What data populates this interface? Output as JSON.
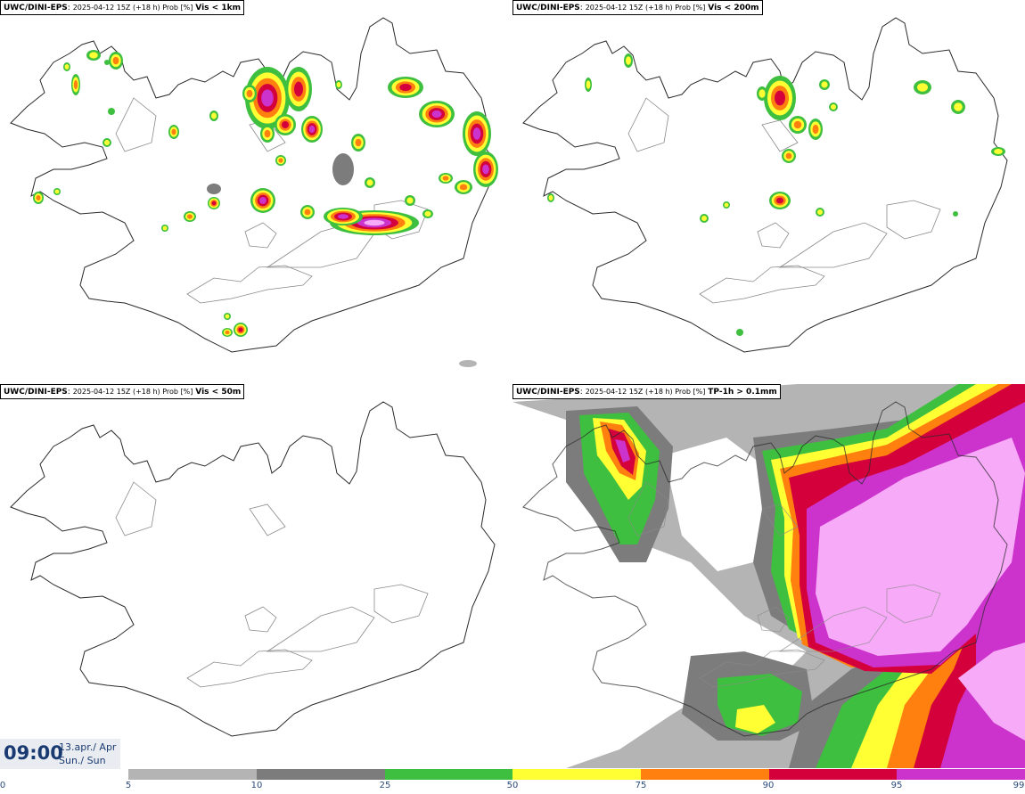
{
  "panels": [
    {
      "model": "UWC/DINI-EPS",
      "run": "2025-04-12 15Z (+18 h) Prob [%]",
      "variable": "Vis < 1km"
    },
    {
      "model": "UWC/DINI-EPS",
      "run": "2025-04-12 15Z (+18 h) Prob [%]",
      "variable": "Vis < 200m"
    },
    {
      "model": "UWC/DINI-EPS",
      "run": "2025-04-12 15Z (+18 h) Prob [%]",
      "variable": "Vis < 50m"
    },
    {
      "model": "UWC/DINI-EPS",
      "run": "2025-04-12 15Z (+18 h) Prob [%]",
      "variable": "TP-1h > 0.1mm"
    }
  ],
  "valid_time": {
    "time": "09:00",
    "date_line1": "13.apr./ Apr",
    "date_line2": "Sun./ Sun"
  },
  "legend": {
    "ticks": [
      "0",
      "5",
      "10",
      "25",
      "50",
      "75",
      "90",
      "95",
      "99"
    ],
    "colors": [
      "#ffffff",
      "#b4b4b4",
      "#7c7c7c",
      "#3fbf3f",
      "#ffff33",
      "#ff7f0f",
      "#d4003c",
      "#cc33cc",
      "#f7aaf7"
    ]
  }
}
